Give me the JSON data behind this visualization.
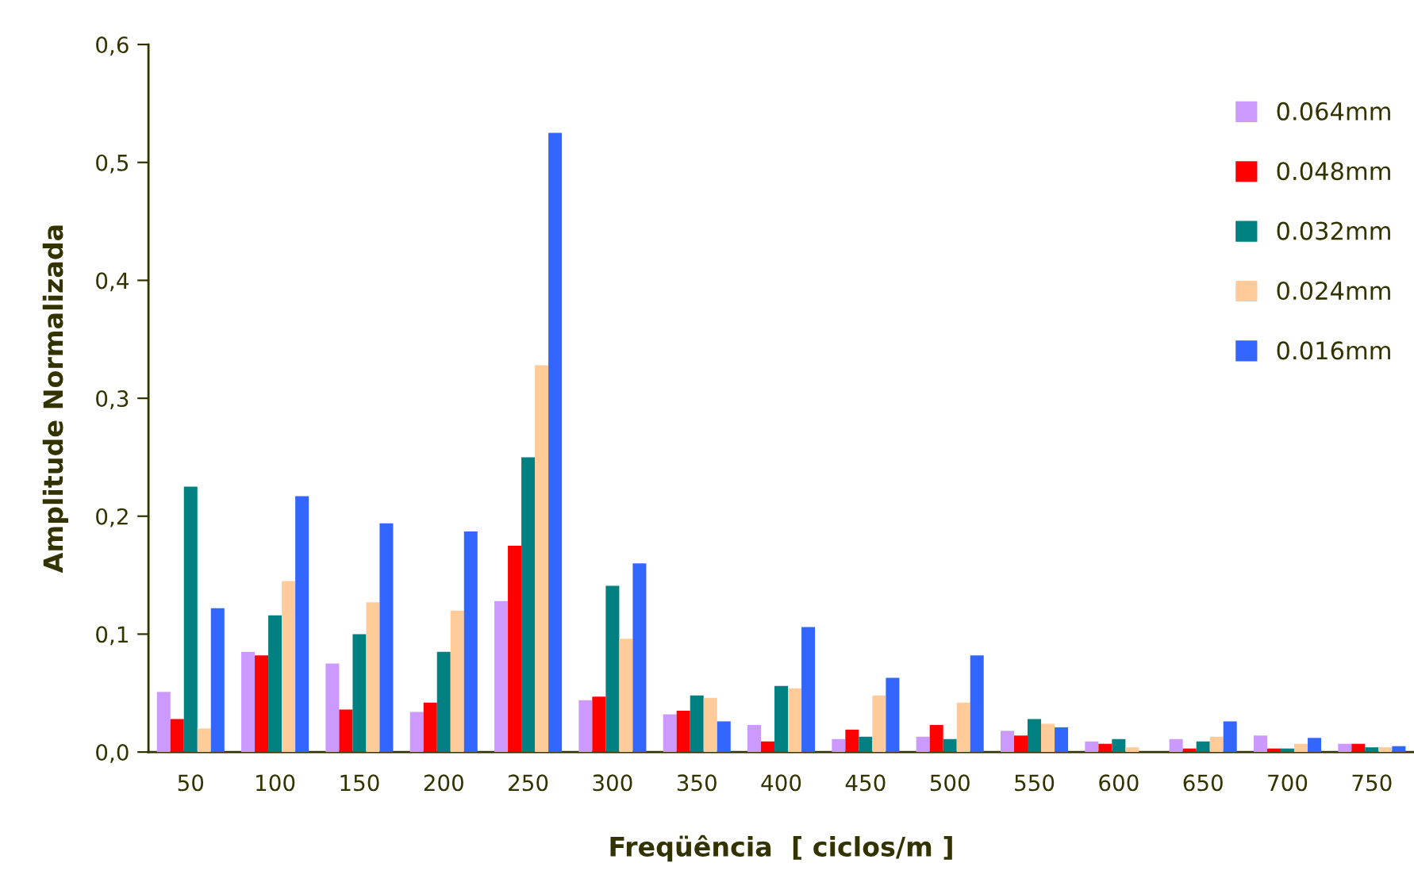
{
  "chart_data": {
    "type": "bar",
    "xlabel": "Freqüência  [ ciclos/m ]",
    "ylabel": "Amplitude Normalizada",
    "categories": [
      "50",
      "100",
      "150",
      "200",
      "250",
      "300",
      "350",
      "400",
      "450",
      "500",
      "550",
      "600",
      "650",
      "700",
      "750"
    ],
    "series": [
      {
        "name": "0.064mm",
        "color": "#cc99ff",
        "values": [
          0.051,
          0.085,
          0.075,
          0.034,
          0.128,
          0.044,
          0.032,
          0.023,
          0.011,
          0.013,
          0.018,
          0.009,
          0.011,
          0.014,
          0.007
        ]
      },
      {
        "name": "0.048mm",
        "color": "#ff0000",
        "values": [
          0.028,
          0.082,
          0.036,
          0.042,
          0.175,
          0.047,
          0.035,
          0.009,
          0.019,
          0.023,
          0.014,
          0.007,
          0.003,
          0.003,
          0.007
        ]
      },
      {
        "name": "0.032mm",
        "color": "#008080",
        "values": [
          0.225,
          0.116,
          0.1,
          0.085,
          0.25,
          0.141,
          0.048,
          0.056,
          0.013,
          0.011,
          0.028,
          0.011,
          0.009,
          0.003,
          0.004
        ]
      },
      {
        "name": "0.024mm",
        "color": "#ffcc99",
        "values": [
          0.02,
          0.145,
          0.127,
          0.12,
          0.328,
          0.096,
          0.046,
          0.054,
          0.048,
          0.042,
          0.024,
          0.004,
          0.013,
          0.007,
          0.004
        ]
      },
      {
        "name": "0.016mm",
        "color": "#3366ff",
        "values": [
          0.122,
          0.217,
          0.194,
          0.187,
          0.525,
          0.16,
          0.026,
          0.106,
          0.063,
          0.082,
          0.021,
          0.0,
          0.026,
          0.012,
          0.005
        ]
      }
    ],
    "ylim": [
      0,
      0.6
    ],
    "yticks": [
      {
        "value": 0,
        "label": "0,0"
      },
      {
        "value": 0.1,
        "label": "0,1"
      },
      {
        "value": 0.2,
        "label": "0,2"
      },
      {
        "value": 0.3,
        "label": "0,3"
      },
      {
        "value": 0.4,
        "label": "0,4"
      },
      {
        "value": 0.5,
        "label": "0,5"
      },
      {
        "value": 0.6,
        "label": "0,6"
      }
    ],
    "grid": false,
    "legend": "top right"
  }
}
